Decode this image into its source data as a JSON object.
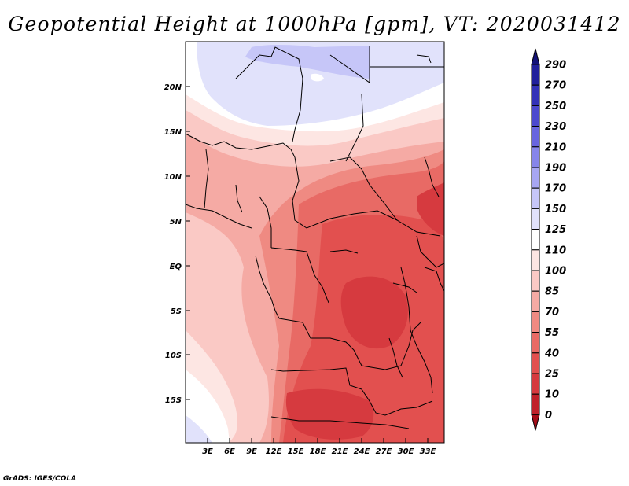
{
  "title": "Geopotential Height at 1000hPa [gpm], VT: 2020031412",
  "credit": "GrADS: IGES/COLA",
  "map": {
    "lat_labels": [
      "20N",
      "15N",
      "10N",
      "5N",
      "EQ",
      "5S",
      "10S",
      "15S"
    ],
    "lon_labels": [
      "3E",
      "6E",
      "9E",
      "12E",
      "15E",
      "18E",
      "21E",
      "24E",
      "27E",
      "30E",
      "33E"
    ]
  },
  "colorbar": {
    "levels": [
      "0",
      "10",
      "25",
      "40",
      "55",
      "70",
      "85",
      "100",
      "110",
      "125",
      "150",
      "170",
      "190",
      "210",
      "230",
      "250",
      "270",
      "290"
    ],
    "colors": [
      "#a50d18",
      "#c0212a",
      "#d63a3f",
      "#e2504f",
      "#e86a65",
      "#ef8a82",
      "#f5aaa4",
      "#fac9c5",
      "#fde6e3",
      "#ffffff",
      "#e1e2fb",
      "#c6c6f8",
      "#a7a6f2",
      "#8685ea",
      "#6865df",
      "#4c49ce",
      "#3332b8",
      "#21209c",
      "#14137a"
    ]
  }
}
